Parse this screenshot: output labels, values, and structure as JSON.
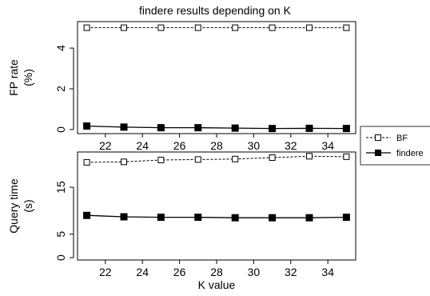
{
  "chart_data": [
    {
      "type": "line",
      "title": "findere results depending on K",
      "ylabel_line1": "FP rate",
      "ylabel_line2": "(%)",
      "x": [
        21,
        23,
        25,
        27,
        29,
        31,
        33,
        35
      ],
      "xticks": [
        22,
        24,
        26,
        28,
        30,
        32,
        34
      ],
      "xlim": [
        20.5,
        35.5
      ],
      "ylim": [
        -0.2,
        5.3
      ],
      "yticks": [
        0,
        2,
        4
      ],
      "series": [
        {
          "name": "BF",
          "marker": "open-square",
          "dash": true,
          "values": [
            5.0,
            5.0,
            5.0,
            5.0,
            5.0,
            5.0,
            5.0,
            5.0
          ]
        },
        {
          "name": "findere",
          "marker": "filled-square",
          "dash": false,
          "values": [
            0.17,
            0.12,
            0.09,
            0.09,
            0.07,
            0.05,
            0.06,
            0.05
          ]
        }
      ]
    },
    {
      "type": "line",
      "title": "",
      "ylabel_line1": "Query time",
      "ylabel_line2": "(s)",
      "xlabel": "K value",
      "x": [
        21,
        23,
        25,
        27,
        29,
        31,
        33,
        35
      ],
      "xticks": [
        22,
        24,
        26,
        28,
        30,
        32,
        34
      ],
      "xlim": [
        20.5,
        35.5
      ],
      "ylim": [
        -0.5,
        22.5
      ],
      "yticks": [
        0,
        5,
        15
      ],
      "series": [
        {
          "name": "BF",
          "marker": "open-square",
          "dash": true,
          "values": [
            20.3,
            20.4,
            20.8,
            20.9,
            21.0,
            21.3,
            21.6,
            21.5
          ]
        },
        {
          "name": "findere",
          "marker": "filled-square",
          "dash": false,
          "values": [
            9.0,
            8.7,
            8.6,
            8.6,
            8.5,
            8.5,
            8.5,
            8.6
          ]
        }
      ]
    }
  ],
  "legend": {
    "placement": "right",
    "entries": [
      "BF",
      "findere"
    ]
  }
}
